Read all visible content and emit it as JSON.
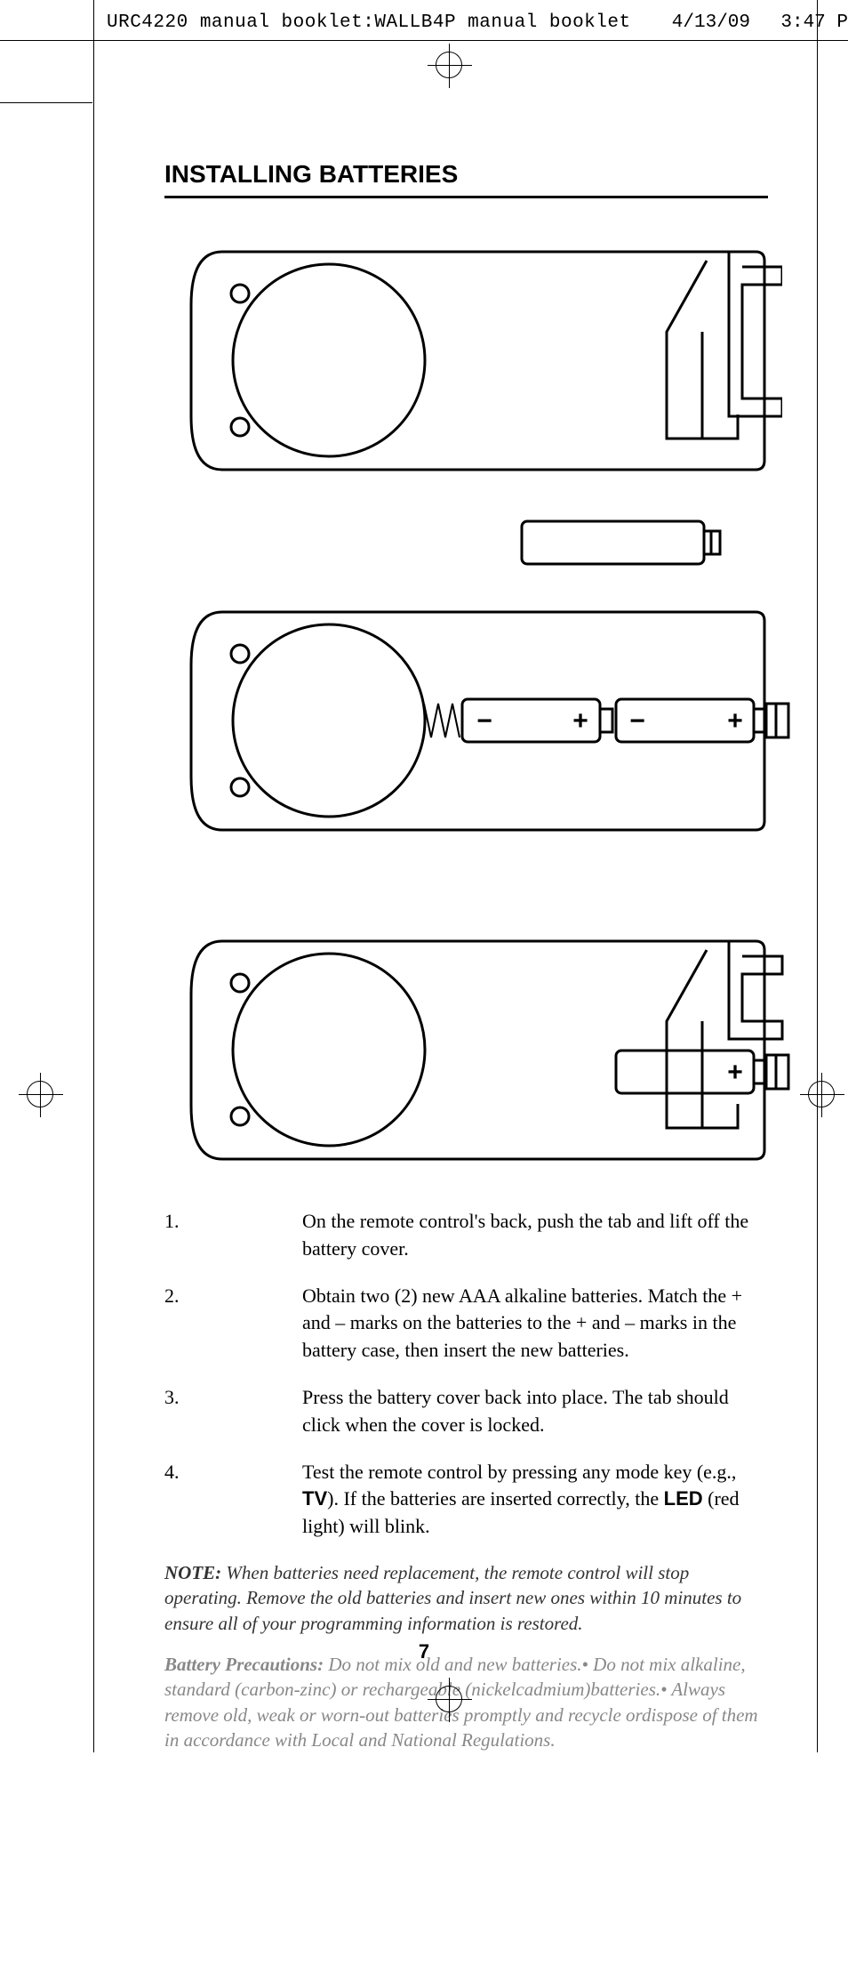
{
  "header": {
    "filename": "URC4220 manual booklet:WALLB4P manual booklet",
    "date": "4/13/09",
    "time": "3:47 P"
  },
  "title": "INSTALLING BATTERIES",
  "diagrams": {
    "stroke": "#000000",
    "fill": "#ffffff",
    "remote_width": 660,
    "remote_height": 255,
    "battery_markers": [
      "−",
      "+",
      "−",
      "+"
    ]
  },
  "steps": [
    {
      "num": "1.",
      "text": "On the remote control's back, push the tab and lift off the battery cover."
    },
    {
      "num": "2.",
      "text": "Obtain two (2) new AAA alkaline batteries. Match the + and – marks on the batteries to the + and – marks in the battery case, then insert the new batteries."
    },
    {
      "num": "3.",
      "text": "Press the battery cover back into place. The tab should click when the cover is locked."
    },
    {
      "num": "4.",
      "text_parts": [
        "Test the remote control by pressing any mode key (e.g., ",
        {
          "bold": "TV"
        },
        "). If the batteries are inserted correctly, the ",
        {
          "bold": "LED"
        },
        " (red light) will blink."
      ]
    }
  ],
  "note": {
    "label": "NOTE:",
    "text": " When batteries need replacement, the remote control will stop operating. Remove the old batteries and insert new ones within 10 minutes to ensure all of your programming information is restored."
  },
  "precautions": {
    "label": "Battery Precautions:",
    "text": " Do not mix old and new batteries.• Do not mix alkaline, standard (carbon-zinc) or rechargeable (nickelcadmium)batteries.• Always remove old, weak or worn-out batteries promptly and recycle ordispose of them in accordance with Local and National Regulations."
  },
  "page_number": "7"
}
